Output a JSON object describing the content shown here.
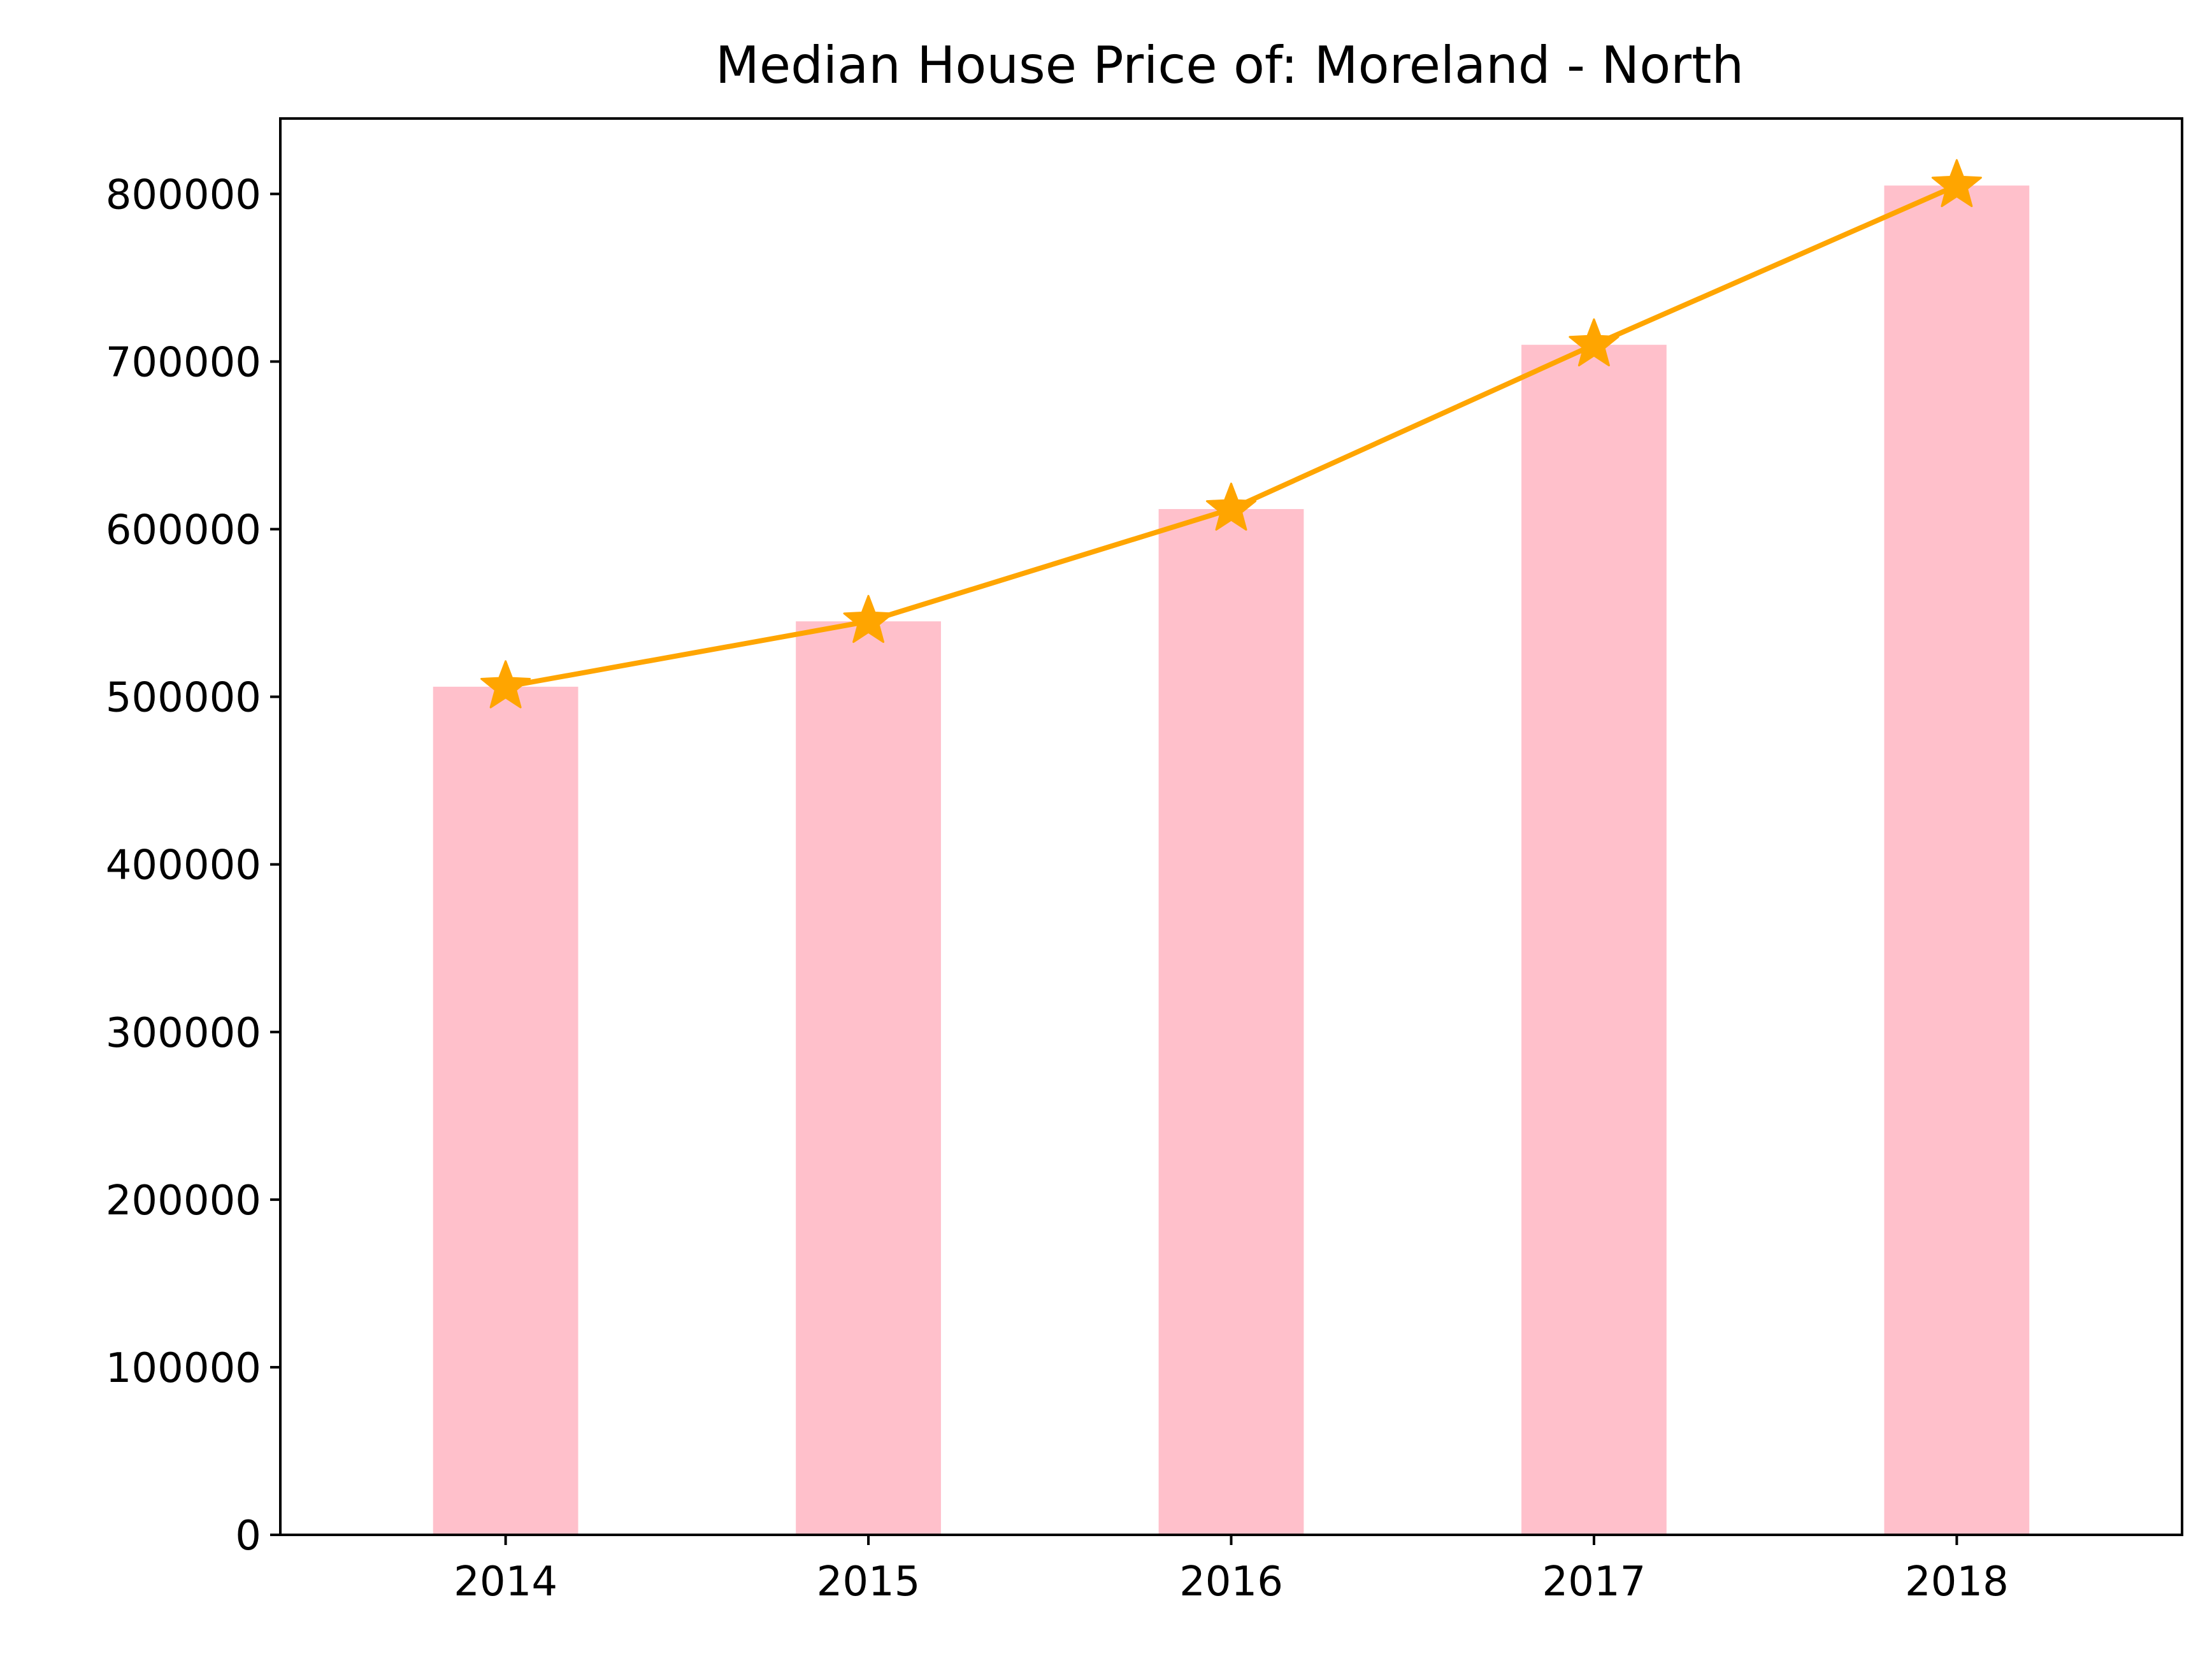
{
  "chart_data": {
    "type": "bar",
    "title": "Median House Price of: Moreland - North",
    "xlabel": "",
    "ylabel": "",
    "categories": [
      "2014",
      "2015",
      "2016",
      "2017",
      "2018"
    ],
    "series": [
      {
        "kind": "bar",
        "values": [
          506000,
          545000,
          612000,
          710000,
          805000
        ]
      },
      {
        "kind": "line",
        "marker": "star",
        "values": [
          506000,
          545000,
          612000,
          710000,
          805000
        ]
      }
    ],
    "ylim": [
      0,
      845000
    ],
    "yticks": [
      0,
      100000,
      200000,
      300000,
      400000,
      500000,
      600000,
      700000,
      800000
    ],
    "ytick_labels": [
      "0",
      "100000",
      "200000",
      "300000",
      "400000",
      "500000",
      "600000",
      "700000",
      "800000"
    ],
    "grid": false,
    "colors": {
      "bar": "#ffc0cb",
      "line": "#ffa500",
      "axes": "#000000",
      "background": "#ffffff"
    }
  }
}
